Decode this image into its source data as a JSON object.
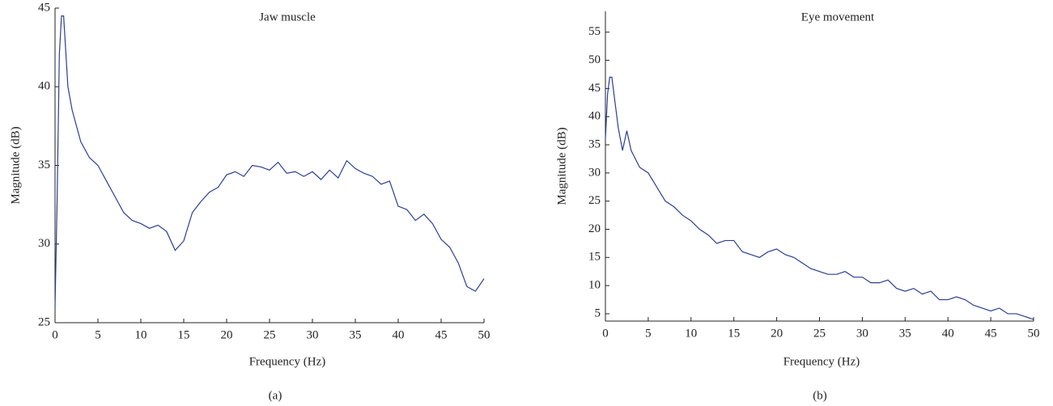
{
  "chart_data": [
    {
      "type": "line",
      "title": "Jaw muscle",
      "xlabel": "Frequency (Hz)",
      "ylabel": "Magnitude (dB)",
      "caption": "(a)",
      "xlim": [
        0,
        50
      ],
      "xticks": [
        0,
        5,
        10,
        15,
        20,
        25,
        30,
        35,
        40,
        45,
        50
      ],
      "ylim": [
        25,
        45
      ],
      "yticks": [
        25,
        30,
        35,
        40,
        45
      ],
      "x": [
        0,
        0.25,
        0.5,
        0.75,
        1,
        1.5,
        2,
        3,
        4,
        5,
        6,
        7,
        8,
        9,
        10,
        11,
        12,
        13,
        14,
        15,
        16,
        17,
        18,
        19,
        20,
        21,
        22,
        23,
        24,
        25,
        26,
        27,
        28,
        29,
        30,
        31,
        32,
        33,
        34,
        35,
        36,
        37,
        38,
        39,
        40,
        41,
        42,
        43,
        44,
        45,
        46,
        47,
        48,
        49,
        50
      ],
      "series": [
        {
          "color": "#2b3e94",
          "values": [
            26,
            33,
            42,
            44.5,
            44.5,
            40,
            38.5,
            36.5,
            35.5,
            35,
            34,
            33,
            32,
            31.5,
            31.3,
            31,
            31.2,
            30.8,
            29.6,
            30.2,
            32,
            32.7,
            33.3,
            33.6,
            34.4,
            34.6,
            34.3,
            35,
            34.9,
            34.7,
            35.2,
            34.5,
            34.6,
            34.3,
            34.6,
            34.1,
            34.7,
            34.2,
            35.3,
            34.8,
            34.5,
            34.3,
            33.8,
            34,
            32.4,
            32.2,
            31.5,
            31.9,
            31.3,
            30.3,
            29.8,
            28.8,
            27.3,
            27,
            27.8
          ]
        }
      ]
    },
    {
      "type": "line",
      "title": "Eye movement",
      "xlabel": "Frequency (Hz)",
      "ylabel": "Magnitude (dB)",
      "caption": "(b)",
      "xlim": [
        0,
        50
      ],
      "xticks": [
        0,
        5,
        10,
        15,
        20,
        25,
        30,
        35,
        40,
        45,
        50
      ],
      "ylim": [
        3.7,
        58.7
      ],
      "yticks": [
        5,
        10,
        15,
        20,
        25,
        30,
        35,
        40,
        45,
        50,
        55
      ],
      "x": [
        0,
        0.25,
        0.5,
        0.75,
        1,
        1.5,
        2,
        2.5,
        3,
        4,
        5,
        6,
        7,
        8,
        9,
        10,
        11,
        12,
        13,
        14,
        15,
        16,
        17,
        18,
        19,
        20,
        21,
        22,
        23,
        24,
        25,
        26,
        27,
        28,
        29,
        30,
        31,
        32,
        33,
        34,
        35,
        36,
        37,
        38,
        39,
        40,
        41,
        42,
        43,
        44,
        45,
        46,
        47,
        48,
        49,
        50
      ],
      "series": [
        {
          "color": "#2b3e94",
          "values": [
            36,
            44,
            47,
            47,
            44,
            38,
            34,
            37.5,
            34,
            31,
            30,
            27.5,
            25,
            24,
            22.5,
            21.5,
            20,
            19,
            17.5,
            18,
            18,
            16,
            15.5,
            15,
            16,
            16.5,
            15.5,
            15,
            14,
            13,
            12.5,
            12,
            12,
            12.5,
            11.5,
            11.5,
            10.5,
            10.5,
            11,
            9.5,
            9,
            9.5,
            8.5,
            9,
            7.5,
            7.5,
            8,
            7.5,
            6.5,
            6,
            5.5,
            6,
            5,
            5,
            4.5,
            4
          ]
        }
      ]
    }
  ]
}
